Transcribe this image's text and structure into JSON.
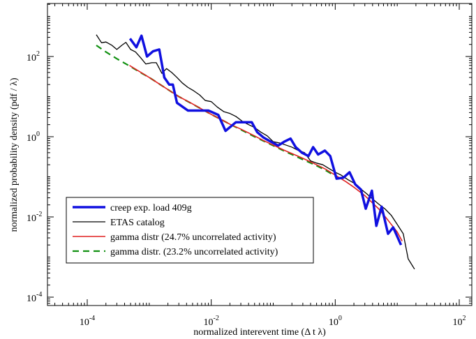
{
  "chart_data": {
    "type": "line",
    "title": "",
    "xlabel": "normalized interevent time (Δ t  λ)",
    "ylabel": "normalized probability density (pdf / λ)",
    "xscale": "log",
    "yscale": "log",
    "xlim": [
      0.0001,
      100
    ],
    "ylim": [
      0.0001,
      10000
    ],
    "grid": false,
    "legend_position": "bottom-left",
    "x_ticks": [
      {
        "value": 0.0001,
        "base": "10",
        "exp": "-4"
      },
      {
        "value": 0.01,
        "base": "10",
        "exp": "-2"
      },
      {
        "value": 1,
        "base": "10",
        "exp": "0"
      },
      {
        "value": 100,
        "base": "10",
        "exp": "2"
      }
    ],
    "y_ticks": [
      {
        "value": 0.0001,
        "base": "10",
        "exp": "-4"
      },
      {
        "value": 0.01,
        "base": "10",
        "exp": "-2"
      },
      {
        "value": 1,
        "base": "10",
        "exp": "0"
      },
      {
        "value": 100,
        "base": "10",
        "exp": "2"
      }
    ],
    "series": [
      {
        "name": "creep exp. load 409g",
        "color": "#1010e0",
        "width": 3.5,
        "dash": "",
        "points": [
          [
            0.00049,
            280
          ],
          [
            0.00062,
            170
          ],
          [
            0.00075,
            330
          ],
          [
            0.00092,
            100
          ],
          [
            0.00115,
            135
          ],
          [
            0.00145,
            150
          ],
          [
            0.00175,
            30
          ],
          [
            0.0021,
            20
          ],
          [
            0.0024,
            20
          ],
          [
            0.0028,
            7
          ],
          [
            0.0042,
            4.5
          ],
          [
            0.0055,
            4.5
          ],
          [
            0.0068,
            4.5
          ],
          [
            0.009,
            4.5
          ],
          [
            0.013,
            3.5
          ],
          [
            0.017,
            1.4
          ],
          [
            0.025,
            2.3
          ],
          [
            0.033,
            2.3
          ],
          [
            0.045,
            2.3
          ],
          [
            0.055,
            1.3
          ],
          [
            0.07,
            0.95
          ],
          [
            0.085,
            0.8
          ],
          [
            0.12,
            0.6
          ],
          [
            0.15,
            0.75
          ],
          [
            0.19,
            0.9
          ],
          [
            0.23,
            0.55
          ],
          [
            0.29,
            0.4
          ],
          [
            0.37,
            0.33
          ],
          [
            0.44,
            0.55
          ],
          [
            0.53,
            0.36
          ],
          [
            0.68,
            0.45
          ],
          [
            0.83,
            0.33
          ],
          [
            1.05,
            0.09
          ],
          [
            1.35,
            0.095
          ],
          [
            1.7,
            0.13
          ],
          [
            2.1,
            0.065
          ],
          [
            2.6,
            0.048
          ],
          [
            3.1,
            0.016
          ],
          [
            3.9,
            0.045
          ],
          [
            4.6,
            0.006
          ],
          [
            5.6,
            0.018
          ],
          [
            7.1,
            0.0038
          ],
          [
            8.6,
            0.0055
          ],
          [
            11.5,
            0.002
          ]
        ]
      },
      {
        "name": "ETAS catalog",
        "color": "#000000",
        "width": 1.3,
        "dash": "",
        "points": [
          [
            0.00014,
            350
          ],
          [
            0.00017,
            220
          ],
          [
            0.0002,
            230
          ],
          [
            0.00025,
            190
          ],
          [
            0.0003,
            150
          ],
          [
            0.00036,
            190
          ],
          [
            0.00042,
            225
          ],
          [
            0.0005,
            150
          ],
          [
            0.0006,
            130
          ],
          [
            0.00072,
            95
          ],
          [
            0.00088,
            65
          ],
          [
            0.0011,
            70
          ],
          [
            0.0013,
            70
          ],
          [
            0.0016,
            38
          ],
          [
            0.0019,
            50
          ],
          [
            0.0023,
            40
          ],
          [
            0.0028,
            30
          ],
          [
            0.0034,
            22
          ],
          [
            0.0042,
            17
          ],
          [
            0.0052,
            14
          ],
          [
            0.0065,
            11
          ],
          [
            0.008,
            8
          ],
          [
            0.01,
            7.5
          ],
          [
            0.0125,
            5.5
          ],
          [
            0.016,
            4.2
          ],
          [
            0.02,
            3.8
          ],
          [
            0.025,
            3.2
          ],
          [
            0.032,
            2.4
          ],
          [
            0.04,
            2.0
          ],
          [
            0.05,
            1.7
          ],
          [
            0.063,
            1.3
          ],
          [
            0.08,
            1.05
          ],
          [
            0.1,
            0.75
          ],
          [
            0.125,
            0.7
          ],
          [
            0.16,
            0.62
          ],
          [
            0.2,
            0.55
          ],
          [
            0.25,
            0.46
          ],
          [
            0.32,
            0.4
          ],
          [
            0.4,
            0.25
          ],
          [
            0.5,
            0.22
          ],
          [
            0.63,
            0.2
          ],
          [
            0.8,
            0.16
          ],
          [
            1.0,
            0.13
          ],
          [
            1.25,
            0.11
          ],
          [
            1.6,
            0.085
          ],
          [
            2.0,
            0.07
          ],
          [
            2.5,
            0.052
          ],
          [
            3.2,
            0.038
          ],
          [
            4.0,
            0.028
          ],
          [
            5.0,
            0.021
          ],
          [
            6.3,
            0.016
          ],
          [
            8.0,
            0.011
          ],
          [
            10.0,
            0.0065
          ],
          [
            12.5,
            0.0038
          ],
          [
            15.0,
            0.0009
          ],
          [
            19.0,
            0.0005
          ]
        ]
      },
      {
        "name": "gamma distr (24.7% uncorrelated activity)",
        "color": "#e02020",
        "width": 1.6,
        "dash": "",
        "points": [
          [
            0.00048,
            60
          ],
          [
            0.0007,
            42
          ],
          [
            0.001,
            30
          ],
          [
            0.0015,
            20
          ],
          [
            0.002,
            15
          ],
          [
            0.003,
            10
          ],
          [
            0.0045,
            7.2
          ],
          [
            0.007,
            4.9
          ],
          [
            0.01,
            3.6
          ],
          [
            0.015,
            2.6
          ],
          [
            0.02,
            2.05
          ],
          [
            0.03,
            1.55
          ],
          [
            0.05,
            1.05
          ],
          [
            0.07,
            0.8
          ],
          [
            0.1,
            0.62
          ],
          [
            0.15,
            0.46
          ],
          [
            0.2,
            0.38
          ],
          [
            0.3,
            0.29
          ],
          [
            0.5,
            0.2
          ],
          [
            0.7,
            0.155
          ],
          [
            1.0,
            0.11
          ],
          [
            1.5,
            0.075
          ],
          [
            2.0,
            0.055
          ],
          [
            3.0,
            0.034
          ],
          [
            5.0,
            0.016
          ],
          [
            7.0,
            0.0085
          ],
          [
            10.0,
            0.0042
          ],
          [
            12.0,
            0.0025
          ]
        ]
      },
      {
        "name": "gamma distr. (23.2% uncorrelated activity)",
        "color": "#109010",
        "width": 2.2,
        "dash": "9,6",
        "points": [
          [
            0.00014,
            190
          ],
          [
            0.0002,
            130
          ],
          [
            0.0003,
            88
          ],
          [
            0.0005,
            56
          ],
          [
            0.0007,
            41
          ],
          [
            0.001,
            30
          ],
          [
            0.0015,
            20
          ],
          [
            0.002,
            15
          ],
          [
            0.003,
            10
          ],
          [
            0.005,
            6.5
          ],
          [
            0.007,
            4.9
          ],
          [
            0.01,
            3.6
          ],
          [
            0.015,
            2.6
          ],
          [
            0.02,
            2.05
          ],
          [
            0.03,
            1.5
          ],
          [
            0.05,
            1.0
          ],
          [
            0.07,
            0.78
          ],
          [
            0.1,
            0.6
          ],
          [
            0.15,
            0.44
          ],
          [
            0.2,
            0.36
          ],
          [
            0.3,
            0.27
          ],
          [
            0.5,
            0.19
          ],
          [
            0.7,
            0.145
          ],
          [
            1.0,
            0.105
          ]
        ]
      }
    ]
  }
}
